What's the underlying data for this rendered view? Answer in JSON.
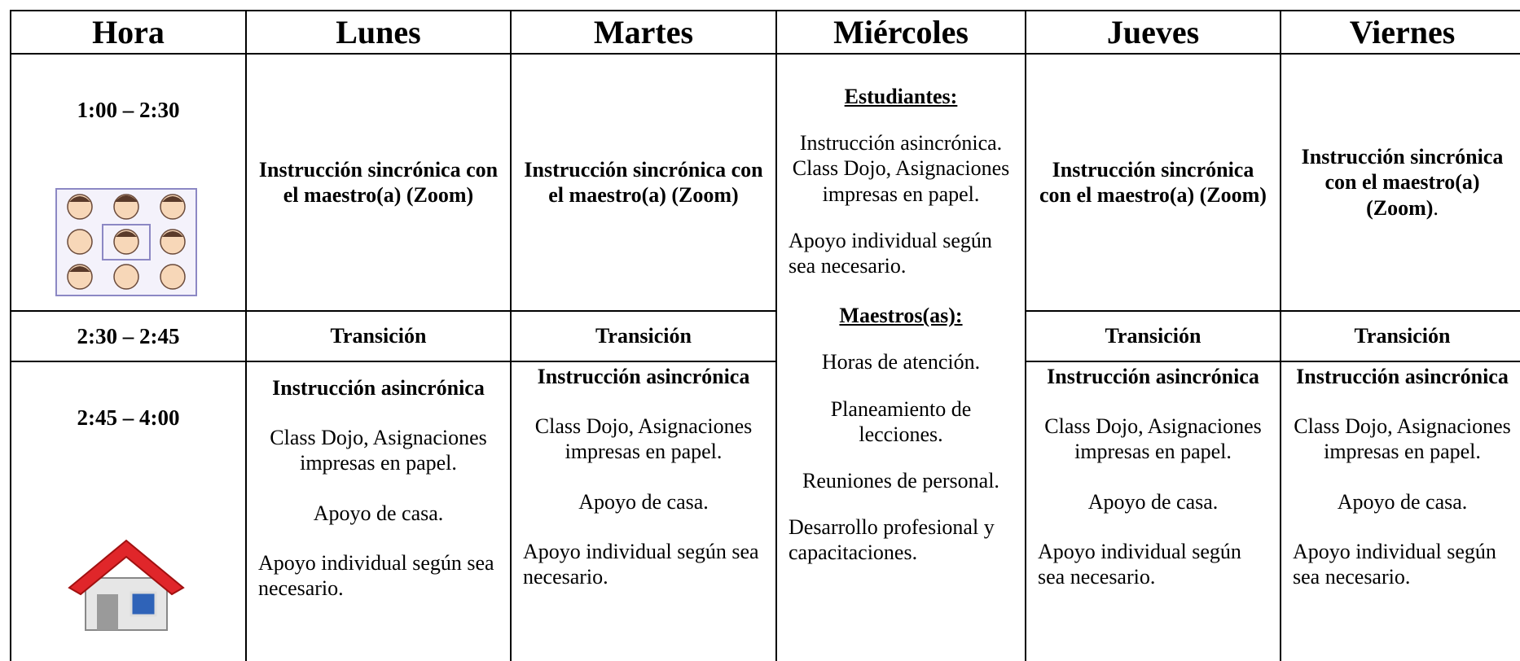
{
  "table": {
    "header": [
      "Hora",
      "Lunes",
      "Martes",
      "Miércoles",
      "Jueves",
      "Viernes"
    ],
    "rows": [
      {
        "time": "1:00 – 2:30",
        "cells": [
          {
            "title": "Instrucción sincrónica con el maestro(a) (Zoom)"
          },
          {
            "title": "Instrucción sincrónica con el maestro(a) (Zoom)"
          },
          {
            "title": "Instrucción sincrónica con el maestro(a) (Zoom)"
          },
          {
            "title": "Instrucción sincrónica con el maestro(a) (Zoom)",
            "suffix": "."
          }
        ]
      },
      {
        "time": "2:30 – 2:45",
        "cells": [
          {
            "title": "Transición"
          },
          {
            "title": "Transición"
          },
          {
            "title": "Transición"
          },
          {
            "title": "Transición"
          }
        ]
      },
      {
        "time": "2:45 – 4:00",
        "cells": [
          {
            "title": "Instrucción asincrónica",
            "paragraphs": [
              "Class Dojo, Asignaciones impresas en papel.",
              "Apoyo de casa.",
              "Apoyo individual según sea necesario."
            ]
          },
          {
            "title": "Instrucción asincrónica",
            "paragraphs": [
              "Class Dojo, Asignaciones impresas en papel.",
              "Apoyo de casa.",
              "Apoyo individual según sea necesario."
            ]
          },
          {
            "title": "Instrucción asincrónica",
            "paragraphs": [
              "Class Dojo, Asignaciones impresas en papel.",
              "Apoyo de casa.",
              "Apoyo individual según sea necesario."
            ]
          },
          {
            "title": "Instrucción asincrónica",
            "paragraphs": [
              "Class Dojo, Asignaciones impresas en papel.",
              "Apoyo de casa.",
              "Apoyo individual según sea necesario."
            ]
          }
        ]
      }
    ],
    "miercoles": {
      "sections": [
        {
          "heading": "Estudiantes:",
          "paragraphs": [
            "Instrucción asincrónica. Class Dojo, Asignaciones impresas en papel.",
            "Apoyo individual según sea necesario."
          ]
        },
        {
          "heading": "Maestros(as):",
          "paragraphs": [
            "Horas de atención.",
            "Planeamiento de lecciones.",
            "Reuniones de personal.",
            "Desarrollo profesional y capacitaciones."
          ]
        }
      ]
    }
  }
}
